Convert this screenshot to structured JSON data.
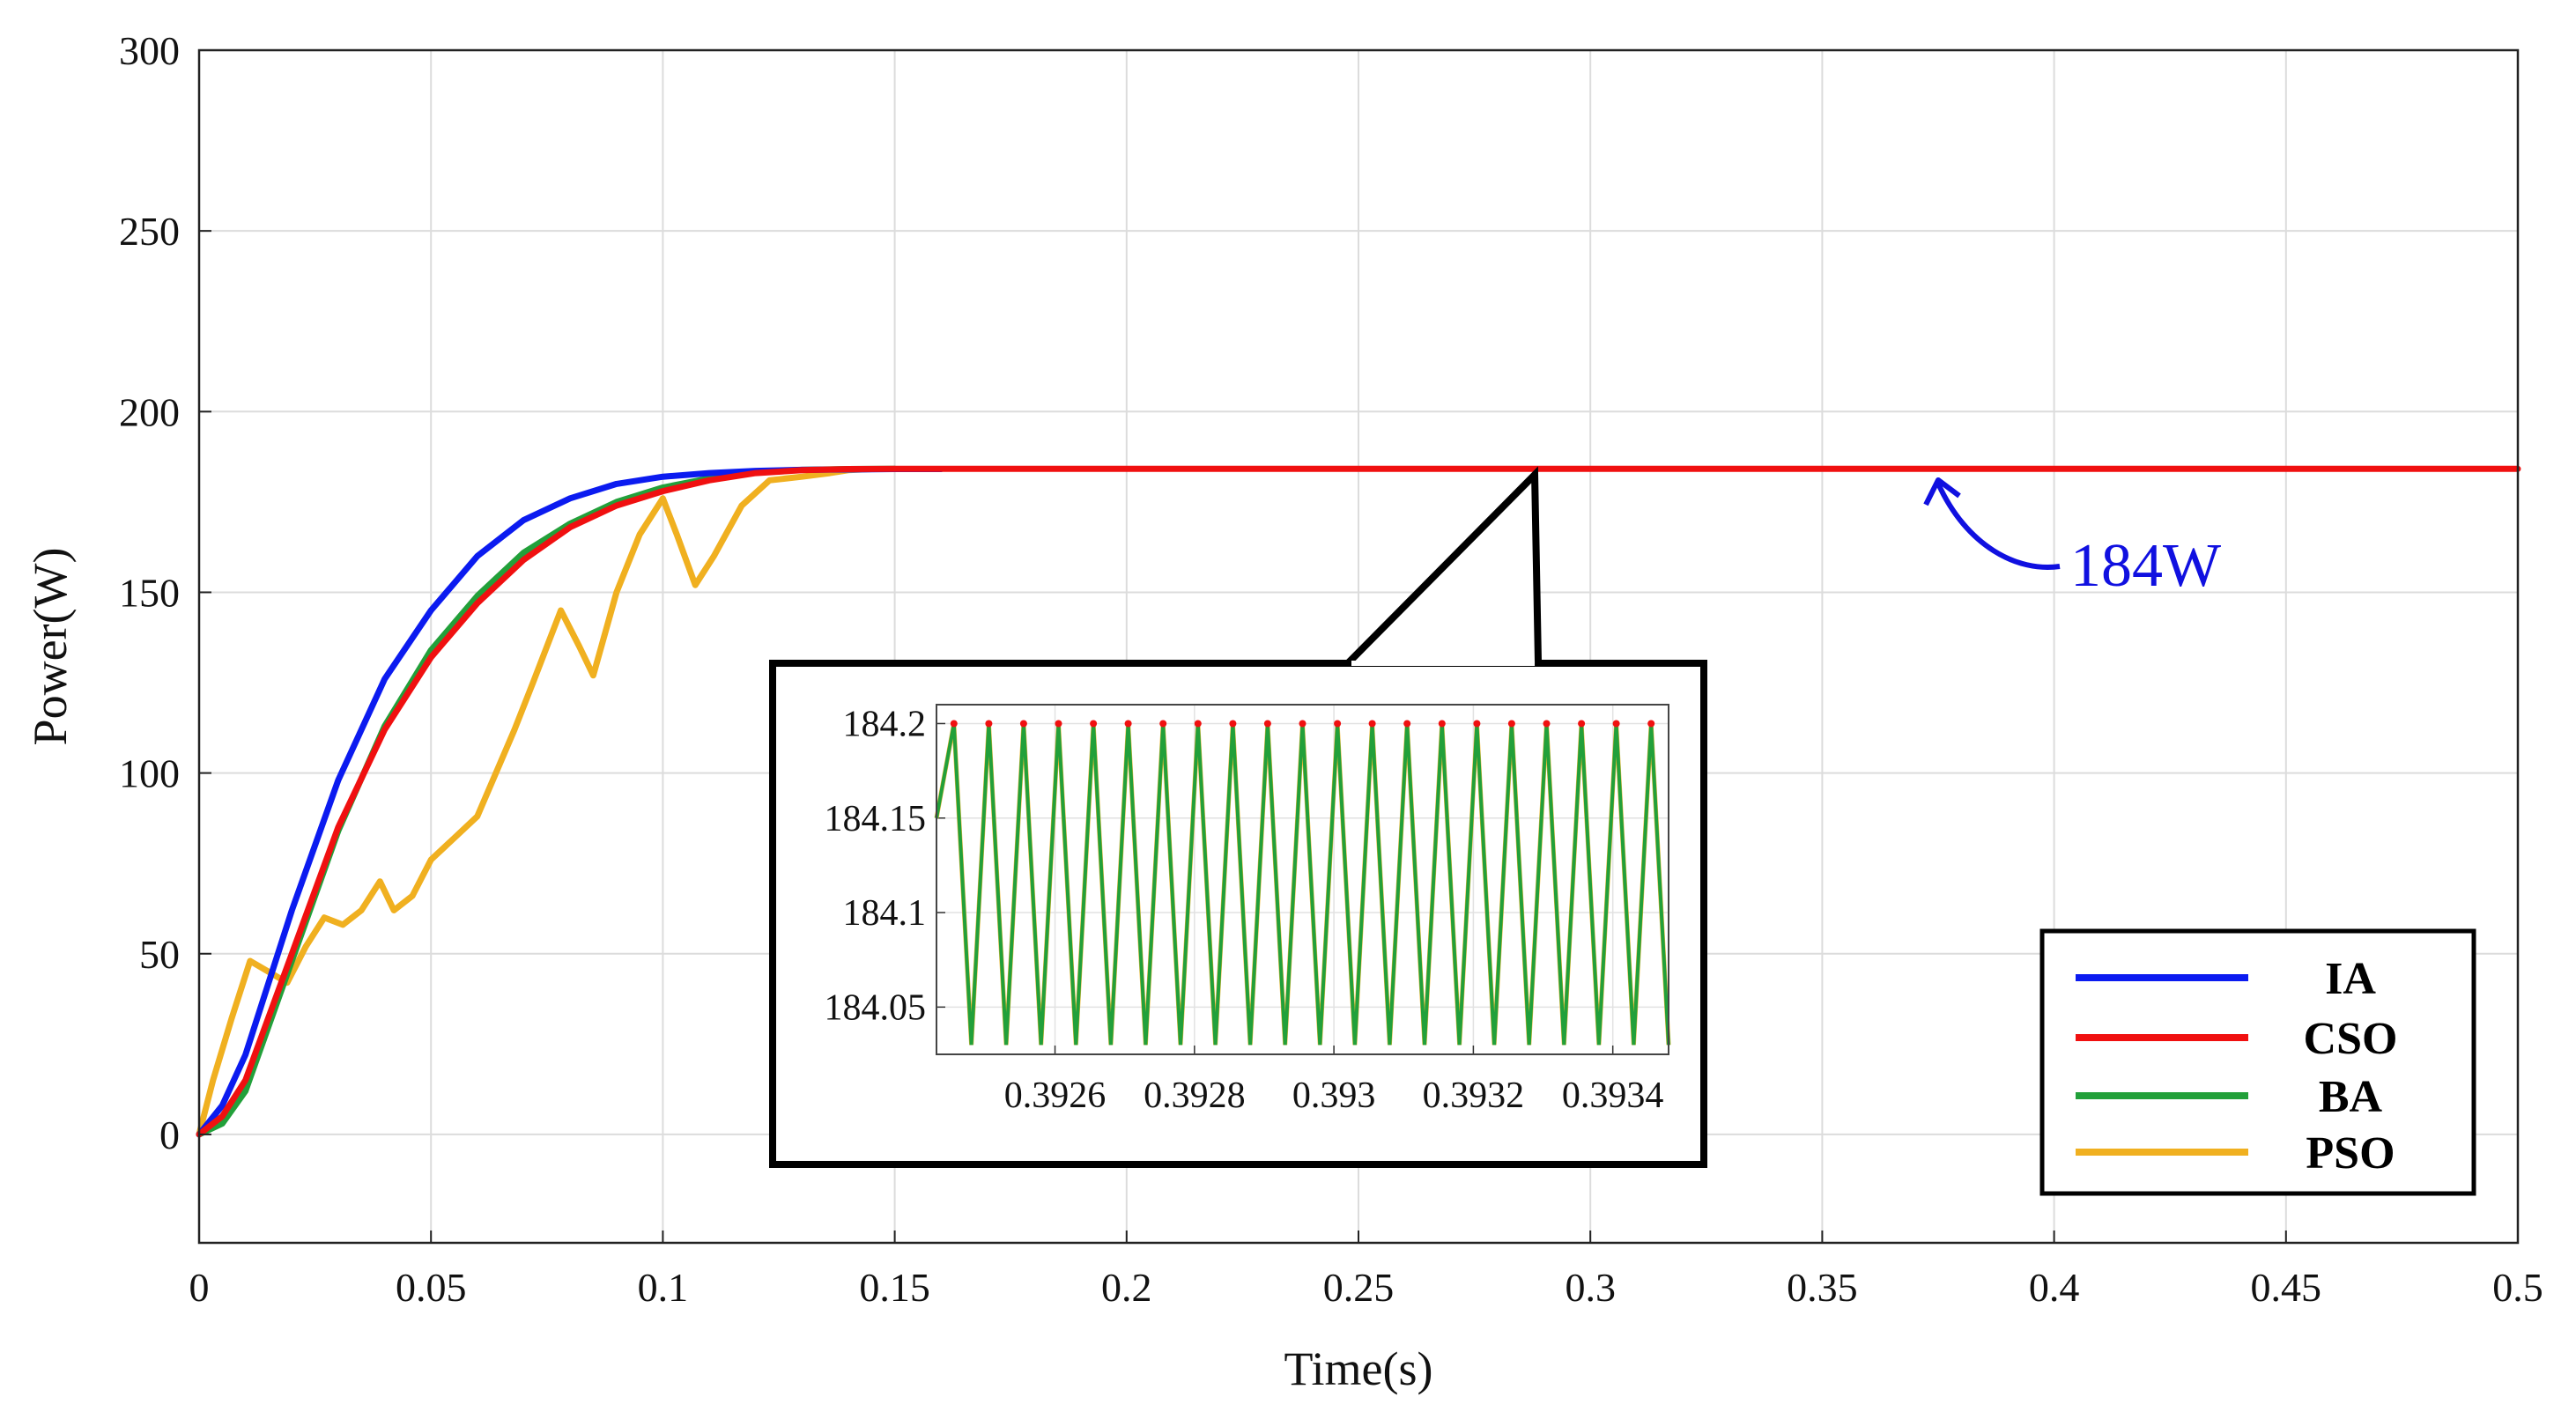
{
  "chart_data": {
    "type": "line",
    "title": "",
    "xlabel": "Time(s)",
    "ylabel": "Power(W)",
    "xlim": [
      0,
      0.5
    ],
    "ylim": [
      -30,
      300
    ],
    "grid": true,
    "x_ticks": [
      "0",
      "0.05",
      "0.1",
      "0.15",
      "0.2",
      "0.25",
      "0.3",
      "0.35",
      "0.4",
      "0.45",
      "0.5"
    ],
    "y_ticks": [
      "0",
      "50",
      "100",
      "150",
      "200",
      "250",
      "300"
    ],
    "legend_position": "bottom-right",
    "series": [
      {
        "name": "IA",
        "color": "#0b1bf0",
        "x": [
          0,
          0.005,
          0.01,
          0.02,
          0.03,
          0.04,
          0.05,
          0.06,
          0.07,
          0.08,
          0.09,
          0.1,
          0.11,
          0.12,
          0.13,
          0.14,
          0.15,
          0.16
        ],
        "y": [
          0,
          8,
          22,
          62,
          98,
          126,
          145,
          160,
          170,
          176,
          180,
          182,
          183,
          183.6,
          183.9,
          184,
          184.1,
          184.1
        ]
      },
      {
        "name": "CSO",
        "color": "#f01010",
        "x": [
          0,
          0.005,
          0.01,
          0.02,
          0.03,
          0.04,
          0.05,
          0.06,
          0.07,
          0.08,
          0.09,
          0.1,
          0.11,
          0.12,
          0.13,
          0.14,
          0.15,
          0.2,
          0.25,
          0.3,
          0.35,
          0.4,
          0.45,
          0.5
        ],
        "y": [
          0,
          5,
          15,
          50,
          85,
          112,
          132,
          147,
          159,
          168,
          174,
          178,
          181,
          183,
          183.8,
          184.1,
          184.15,
          184.15,
          184.15,
          184.15,
          184.15,
          184.15,
          184.15,
          184.15
        ]
      },
      {
        "name": "BA",
        "color": "#22a03a",
        "x": [
          0,
          0.005,
          0.01,
          0.02,
          0.03,
          0.04,
          0.05,
          0.06,
          0.07,
          0.08,
          0.09,
          0.1,
          0.11,
          0.12,
          0.13,
          0.14,
          0.15
        ],
        "y": [
          0,
          3,
          12,
          48,
          84,
          113,
          134,
          149,
          161,
          169,
          175,
          179,
          181.5,
          183.2,
          183.9,
          184.1,
          184.15
        ]
      },
      {
        "name": "PSO",
        "color": "#f0b020",
        "x": [
          0,
          0.003,
          0.007,
          0.011,
          0.015,
          0.019,
          0.023,
          0.027,
          0.031,
          0.035,
          0.039,
          0.042,
          0.046,
          0.05,
          0.055,
          0.06,
          0.064,
          0.068,
          0.072,
          0.078,
          0.082,
          0.085,
          0.09,
          0.095,
          0.1,
          0.103,
          0.107,
          0.111,
          0.117,
          0.123,
          0.13,
          0.136,
          0.14,
          0.145
        ],
        "y": [
          0,
          15,
          32,
          48,
          45,
          42,
          52,
          60,
          58,
          62,
          70,
          62,
          66,
          76,
          82,
          88,
          100,
          112,
          125,
          145,
          135,
          127,
          150,
          166,
          176,
          166,
          152,
          160,
          174,
          181,
          182,
          183,
          183.8,
          184.1
        ]
      }
    ],
    "annotations": [
      {
        "text": "184W",
        "points_to": [
          0.375,
          184
        ]
      }
    ],
    "inset": {
      "type": "line",
      "xlim": [
        0.39243,
        0.39348
      ],
      "ylim": [
        184.025,
        184.21
      ],
      "x_ticks": [
        "0.3926",
        "0.3928",
        "0.393",
        "0.3932",
        "0.3934"
      ],
      "y_ticks": [
        "184.2",
        "184.15",
        "184.1",
        "184.05"
      ],
      "zoom_origin": [
        0.288,
        184
      ],
      "oscillation": {
        "period": 5e-05,
        "start": 0.39243,
        "end": 0.39348,
        "min": 184.03,
        "max": 184.2,
        "series": [
          "BA",
          "PSO",
          "CSO"
        ]
      }
    }
  }
}
